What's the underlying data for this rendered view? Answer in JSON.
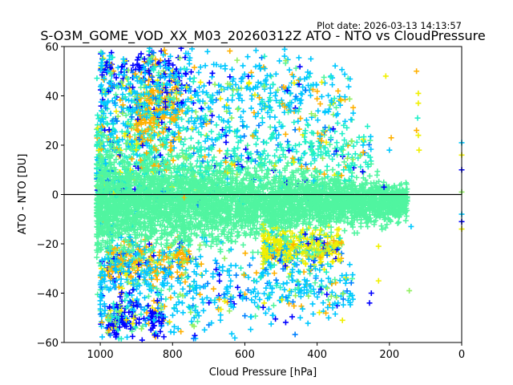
{
  "chart_data": {
    "type": "scatter",
    "title": "S-O3M_GOME_VOD_XX_M03_20260312Z ATO - NTO vs CloudPressure",
    "plot_date": "Plot date: 2026-03-13 14:13:57",
    "xlabel": "Cloud Pressure [hPa]",
    "ylabel": "ATO - NTO [DU]",
    "xlim": [
      1100,
      0
    ],
    "ylim": [
      -60,
      60
    ],
    "x_ticks": [
      1000,
      800,
      600,
      400,
      200,
      0
    ],
    "x_tick_labels": [
      "1000",
      "800",
      "600",
      "400",
      "200",
      "0"
    ],
    "y_ticks": [
      60,
      40,
      20,
      0,
      -20,
      -40,
      -60
    ],
    "y_tick_labels": [
      "60",
      "40",
      "20",
      "0",
      "−20",
      "−40",
      "−60"
    ],
    "reference_line_y": 0,
    "marker": "+",
    "grid": false,
    "colors": [
      "#0000ff",
      "#0080ff",
      "#00c8ff",
      "#20f0c8",
      "#50f5a0",
      "#90f060",
      "#f0f000",
      "#ffb000"
    ],
    "core_color": "#50f5a0",
    "clusters": [
      {
        "name": "core",
        "x_range": [
          1010,
          150
        ],
        "y_center": -3,
        "y_spread": [
          18,
          6
        ],
        "color_index": 4,
        "count": 2600
      },
      {
        "name": "upper-mid",
        "x_range": [
          1010,
          250
        ],
        "y_center": 18,
        "y_spread": [
          20,
          8
        ],
        "color_index": 3,
        "count": 700
      },
      {
        "name": "upper-orange",
        "x_range": [
          900,
          780
        ],
        "y_center": 35,
        "y_spread": [
          14,
          14
        ],
        "color_index": 7,
        "count": 260
      },
      {
        "name": "upper-blue",
        "x_range": [
          1000,
          760
        ],
        "y_center": 50,
        "y_spread": [
          10,
          10
        ],
        "color_index": 0,
        "count": 140
      },
      {
        "name": "upper-mixed",
        "x_range": [
          1000,
          300
        ],
        "y_center": 40,
        "y_spread": [
          20,
          10
        ],
        "color_index": 2,
        "count": 600
      },
      {
        "name": "lower-orange",
        "x_range": [
          980,
          750
        ],
        "y_center": -27,
        "y_spread": [
          6,
          6
        ],
        "color_index": 7,
        "count": 260
      },
      {
        "name": "lower-yellow",
        "x_range": [
          550,
          330
        ],
        "y_center": -22,
        "y_spread": [
          7,
          5
        ],
        "color_index": 6,
        "count": 400
      },
      {
        "name": "lower-mixed",
        "x_range": [
          1000,
          300
        ],
        "y_center": -38,
        "y_spread": [
          18,
          8
        ],
        "color_index": 2,
        "count": 600
      },
      {
        "name": "lower-blue",
        "x_range": [
          980,
          820
        ],
        "y_center": -50,
        "y_spread": [
          8,
          8
        ],
        "color_index": 0,
        "count": 160
      }
    ],
    "outliers": [
      {
        "x": 125,
        "y": 50,
        "c": 7
      },
      {
        "x": 120,
        "y": 41,
        "c": 6
      },
      {
        "x": 120,
        "y": 37,
        "c": 6
      },
      {
        "x": 122,
        "y": 31,
        "c": 3
      },
      {
        "x": 125,
        "y": 26,
        "c": 7
      },
      {
        "x": 120,
        "y": 24,
        "c": 6
      },
      {
        "x": 118,
        "y": 18,
        "c": 6
      },
      {
        "x": 210,
        "y": 48,
        "c": 6
      },
      {
        "x": 195,
        "y": 23,
        "c": 7
      },
      {
        "x": 200,
        "y": 18,
        "c": 2
      },
      {
        "x": 215,
        "y": 3,
        "c": 0
      },
      {
        "x": 140,
        "y": -13,
        "c": 2
      },
      {
        "x": 145,
        "y": -39,
        "c": 5
      },
      {
        "x": 230,
        "y": -35,
        "c": 6
      },
      {
        "x": 255,
        "y": -44,
        "c": 0
      },
      {
        "x": 250,
        "y": -40,
        "c": 0
      },
      {
        "x": 230,
        "y": -21,
        "c": 6
      },
      {
        "x": 330,
        "y": -51,
        "c": 6
      },
      {
        "x": 0,
        "y": 21,
        "c": 2
      },
      {
        "x": 0,
        "y": 16,
        "c": 6
      },
      {
        "x": 0,
        "y": 10,
        "c": 0
      },
      {
        "x": 0,
        "y": 1,
        "c": 5
      },
      {
        "x": 0,
        "y": -8,
        "c": 2
      },
      {
        "x": 0,
        "y": -11,
        "c": 0
      },
      {
        "x": 0,
        "y": -14,
        "c": 6
      }
    ]
  }
}
